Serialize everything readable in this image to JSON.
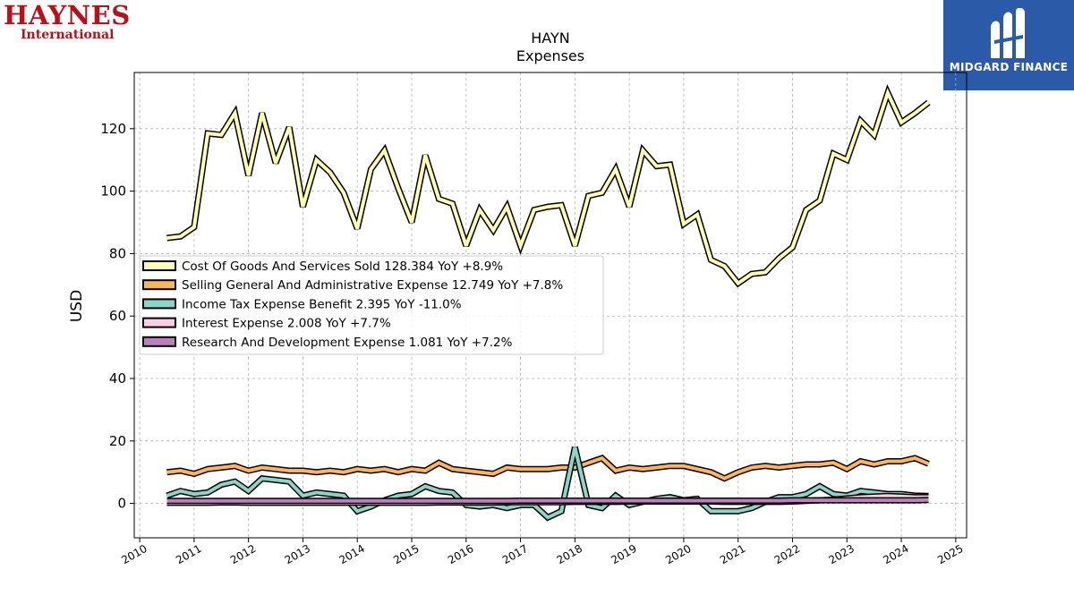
{
  "logos": {
    "left_line1": "HAYNES",
    "left_line2": "International",
    "right": "MIDGARD FINANCE"
  },
  "chart_data": {
    "type": "line",
    "title": "HAYN",
    "subtitle": "Expenses",
    "xlabel": "",
    "ylabel": "USD",
    "xlim": [
      2009.9,
      2025.2
    ],
    "ylim": [
      -11,
      138
    ],
    "xticks": [
      "2010",
      "2011",
      "2012",
      "2013",
      "2014",
      "2015",
      "2016",
      "2017",
      "2018",
      "2019",
      "2020",
      "2021",
      "2022",
      "2023",
      "2024",
      "2025"
    ],
    "yticks": [
      0,
      20,
      40,
      60,
      80,
      100,
      120
    ],
    "grid": true,
    "legend_position": "center-left",
    "x": [
      2010.5,
      2010.75,
      2011.0,
      2011.25,
      2011.5,
      2011.75,
      2012.0,
      2012.25,
      2012.5,
      2012.75,
      2013.0,
      2013.25,
      2013.5,
      2013.75,
      2014.0,
      2014.25,
      2014.5,
      2014.75,
      2015.0,
      2015.25,
      2015.5,
      2015.75,
      2016.0,
      2016.25,
      2016.5,
      2016.75,
      2017.0,
      2017.25,
      2017.5,
      2017.75,
      2018.0,
      2018.25,
      2018.5,
      2018.75,
      2019.0,
      2019.25,
      2019.5,
      2019.75,
      2020.0,
      2020.25,
      2020.5,
      2020.75,
      2021.0,
      2021.25,
      2021.5,
      2021.75,
      2022.0,
      2022.25,
      2022.5,
      2022.75,
      2023.0,
      2023.25,
      2023.5,
      2023.75,
      2024.0,
      2024.25,
      2024.5
    ],
    "series": [
      {
        "name": "Cost Of Goods And Services Sold",
        "legend": "Cost Of Goods And Services Sold  128.384 YoY +8.9%",
        "color": "#ffffb3",
        "values": [
          85,
          85.5,
          88.5,
          118.5,
          118,
          125,
          105,
          125,
          109,
          120.5,
          95,
          110,
          106,
          99.5,
          88,
          107,
          113,
          101,
          90,
          111.5,
          97.5,
          96,
          82.5,
          94,
          87.5,
          95,
          82.5,
          94,
          95,
          95.5,
          82.5,
          98.5,
          99.5,
          107,
          95,
          113,
          108,
          108.5,
          89.5,
          92.5,
          78,
          76,
          70.5,
          73.5,
          74,
          78.5,
          82,
          94,
          97,
          112,
          110,
          122.5,
          118,
          131.5,
          122,
          125,
          128.4
        ]
      },
      {
        "name": "Selling General And Administrative Expense",
        "legend": "Selling General And Administrative Expense  12.749 YoY +7.8%",
        "color": "#fdb462",
        "values": [
          10,
          10.5,
          9.5,
          11,
          11.5,
          12,
          10.5,
          11.5,
          11,
          10.5,
          10.5,
          10,
          10.5,
          10,
          11,
          10.5,
          11,
          10,
          11,
          10.5,
          13,
          11,
          10.5,
          10,
          9.5,
          11.5,
          11,
          11,
          11,
          11.5,
          11.5,
          13,
          14.5,
          10.5,
          11.5,
          11,
          11.5,
          12,
          12,
          11,
          10,
          8,
          10,
          11.5,
          12,
          11.5,
          12,
          12.5,
          12.5,
          13,
          11,
          13.5,
          12.5,
          13.5,
          13.5,
          14.5,
          12.7
        ]
      },
      {
        "name": "Income Tax Expense Benefit",
        "legend": "Income Tax Expense Benefit  2.395 YoY -11.0%",
        "color": "#8dd3c7",
        "values": [
          2.5,
          4,
          3,
          3.5,
          6,
          7,
          4,
          8,
          7.5,
          7,
          2.5,
          3.5,
          3,
          2.5,
          -2.5,
          -1,
          1,
          2.5,
          3,
          5.5,
          4,
          3.5,
          -0.5,
          -1,
          -0.5,
          -1.5,
          -0.5,
          -0.5,
          -4.5,
          -2.5,
          18,
          -0.5,
          -1.5,
          2.5,
          -0.5,
          0.5,
          1.5,
          2,
          1,
          1.5,
          -2.5,
          -2.5,
          -2.5,
          -1.5,
          0.5,
          2,
          2,
          3,
          5.5,
          3,
          2.5,
          4,
          3.5,
          3,
          3,
          2.5,
          2.4
        ]
      },
      {
        "name": "Interest Expense",
        "legend": "Interest Expense  2.008 YoY +7.7%",
        "color": "#fccde5",
        "values": [
          0.2,
          0.2,
          0.2,
          0.2,
          0.3,
          0.3,
          0.2,
          0.2,
          0.2,
          0.2,
          0.2,
          0.2,
          0.2,
          0.2,
          0.2,
          0.2,
          0.2,
          0.2,
          0.2,
          0.2,
          0.3,
          0.3,
          0.3,
          0.3,
          0.3,
          0.4,
          0.4,
          0.4,
          0.4,
          0.4,
          0.5,
          0.5,
          0.5,
          0.5,
          0.6,
          0.6,
          0.6,
          0.6,
          0.6,
          0.6,
          0.6,
          0.5,
          0.5,
          0.5,
          0.5,
          0.5,
          0.6,
          0.8,
          1.0,
          1.2,
          1.6,
          2.0,
          2.2,
          2.4,
          2.2,
          2.0,
          2.0
        ]
      },
      {
        "name": "Research And Development Expense",
        "legend": "Research And Development Expense  1.081 YoY +7.2%",
        "color": "#bc80bd",
        "values": [
          0.8,
          0.8,
          0.8,
          0.8,
          0.8,
          0.8,
          0.8,
          0.8,
          0.8,
          0.8,
          0.8,
          0.8,
          0.8,
          0.8,
          0.8,
          0.8,
          0.8,
          0.8,
          0.8,
          0.8,
          0.8,
          0.8,
          0.8,
          0.8,
          0.8,
          0.8,
          0.9,
          0.9,
          0.9,
          0.9,
          0.9,
          0.9,
          0.9,
          0.9,
          0.9,
          0.9,
          0.9,
          0.9,
          0.9,
          0.9,
          0.9,
          0.9,
          0.9,
          0.9,
          0.9,
          0.9,
          1.0,
          1.0,
          1.0,
          1.0,
          1.0,
          1.0,
          1.0,
          1.0,
          1.0,
          1.0,
          1.1
        ]
      }
    ]
  }
}
